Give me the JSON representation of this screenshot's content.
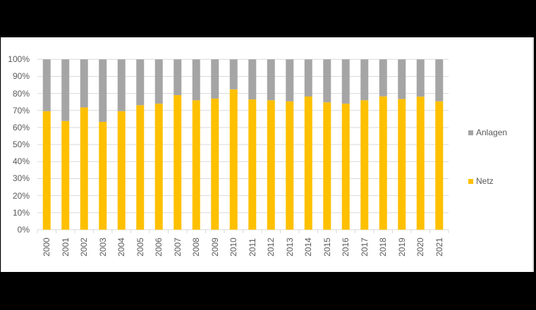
{
  "chart_data": {
    "type": "bar",
    "stacked": true,
    "normalized_percent": true,
    "title": "",
    "xlabel": "",
    "ylabel": "",
    "ylim": [
      0,
      100
    ],
    "y_ticks": [
      "0%",
      "10%",
      "20%",
      "30%",
      "40%",
      "50%",
      "60%",
      "70%",
      "80%",
      "90%",
      "100%"
    ],
    "grid": true,
    "legend_position": "right",
    "categories": [
      "2000",
      "2001",
      "2002",
      "2003",
      "2004",
      "2005",
      "2006",
      "2007",
      "2008",
      "2009",
      "2010",
      "2011",
      "2012",
      "2013",
      "2014",
      "2015",
      "2016",
      "2017",
      "2018",
      "2019",
      "2020",
      "2021"
    ],
    "series": [
      {
        "name": "Netz",
        "color": "#FFC000",
        "values": [
          69.6,
          63.8,
          71.8,
          63.3,
          69.6,
          73.1,
          74.0,
          79.0,
          76.0,
          77.0,
          82.4,
          76.5,
          76.0,
          75.4,
          78.2,
          74.8,
          74.0,
          76.0,
          78.3,
          76.7,
          78.1,
          75.4
        ]
      },
      {
        "name": "Anlagen",
        "color": "#A5A5A5",
        "values": [
          30.4,
          36.2,
          28.2,
          36.7,
          30.4,
          26.9,
          26.0,
          21.0,
          24.0,
          23.0,
          17.6,
          23.5,
          24.0,
          24.6,
          21.8,
          25.2,
          26.0,
          24.0,
          21.7,
          23.3,
          21.9,
          24.6
        ]
      }
    ]
  },
  "legend": {
    "items": [
      {
        "label": "Anlagen",
        "color": "#A5A5A5"
      },
      {
        "label": "Netz",
        "color": "#FFC000"
      }
    ]
  }
}
